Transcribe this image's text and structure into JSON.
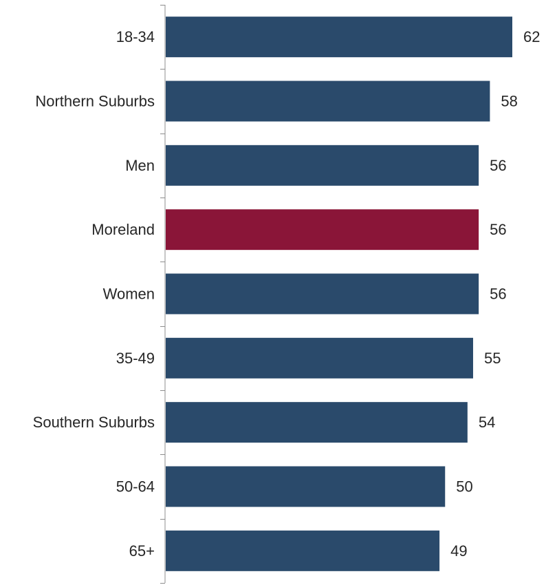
{
  "chart_data": {
    "type": "bar",
    "orientation": "horizontal",
    "categories": [
      "18-34",
      "Northern Suburbs",
      "Men",
      "Moreland",
      "Women",
      "35-49",
      "Southern Suburbs",
      "50-64",
      "65+"
    ],
    "values": [
      62,
      58,
      56,
      56,
      56,
      55,
      54,
      50,
      49
    ],
    "highlight_category": "Moreland",
    "colors": {
      "bar": "#2a4a6b",
      "highlight": "#8a1538",
      "axis": "#8c8c8c",
      "label_text": "#262626"
    },
    "xlim": [
      0,
      62
    ],
    "data_labels": true,
    "grid": false,
    "legend": "none",
    "title": "",
    "xlabel": "",
    "ylabel": ""
  }
}
